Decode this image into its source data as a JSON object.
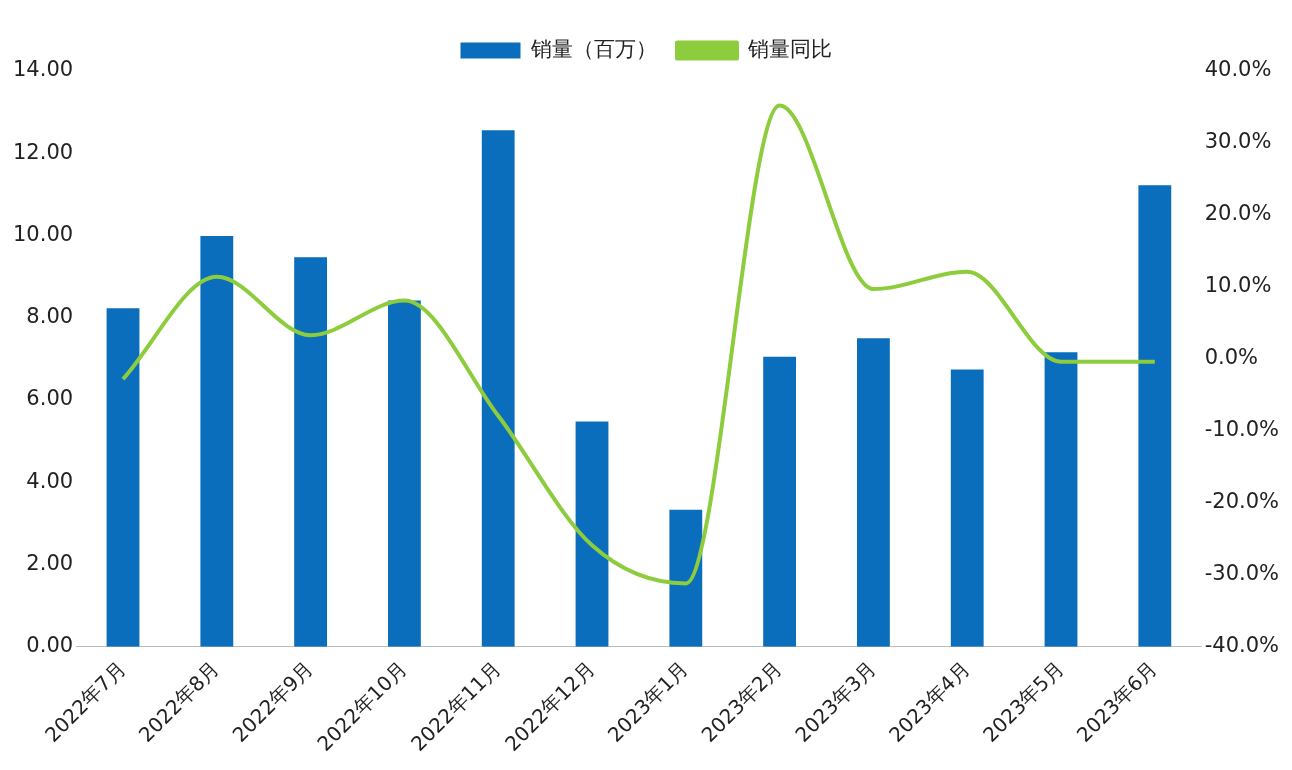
{
  "chart_data": {
    "type": "bar",
    "categories": [
      "2022年7月",
      "2022年8月",
      "2022年9月",
      "2022年10月",
      "2022年11月",
      "2022年12月",
      "2023年1月",
      "2023年2月",
      "2023年3月",
      "2023年4月",
      "2023年5月",
      "2023年6月"
    ],
    "series": [
      {
        "name": "销量（百万）",
        "color": "#0a6ebd",
        "values": [
          8.23,
          9.99,
          9.47,
          8.42,
          12.56,
          5.48,
          3.33,
          7.05,
          7.5,
          6.74,
          7.16,
          11.22
        ]
      },
      {
        "name": "销量同比",
        "type": "line",
        "axis": "y2",
        "color": "#8dcc3c",
        "values": [
          -2.8,
          11.4,
          3.3,
          8.1,
          -7.9,
          -25.9,
          -31.2,
          35.2,
          9.7,
          12.1,
          -0.4,
          -0.4
        ]
      }
    ],
    "ylim": [
      0,
      14
    ],
    "yticks": [
      {
        "value": 0,
        "label": "0.00"
      },
      {
        "value": 2,
        "label": "2.00"
      },
      {
        "value": 4,
        "label": "4.00"
      },
      {
        "value": 6,
        "label": "6.00"
      },
      {
        "value": 8,
        "label": "8.00"
      },
      {
        "value": 10,
        "label": "10.00"
      },
      {
        "value": 12,
        "label": "12.00"
      },
      {
        "value": 14,
        "label": "14.00"
      }
    ],
    "y2lim": [
      -40,
      40
    ],
    "y2ticks": [
      {
        "value": -40,
        "label": "-40.0%"
      },
      {
        "value": -30,
        "label": "-30.0%"
      },
      {
        "value": -20,
        "label": "-20.0%"
      },
      {
        "value": -10,
        "label": "-10.0%"
      },
      {
        "value": 0,
        "label": "0.0%"
      },
      {
        "value": 10,
        "label": "10.0%"
      },
      {
        "value": 20,
        "label": "20.0%"
      },
      {
        "value": 30,
        "label": "30.0%"
      },
      {
        "value": 40,
        "label": "40.0%"
      }
    ],
    "grid": false,
    "legend": "top",
    "marker": "none",
    "line_style": "solid"
  }
}
